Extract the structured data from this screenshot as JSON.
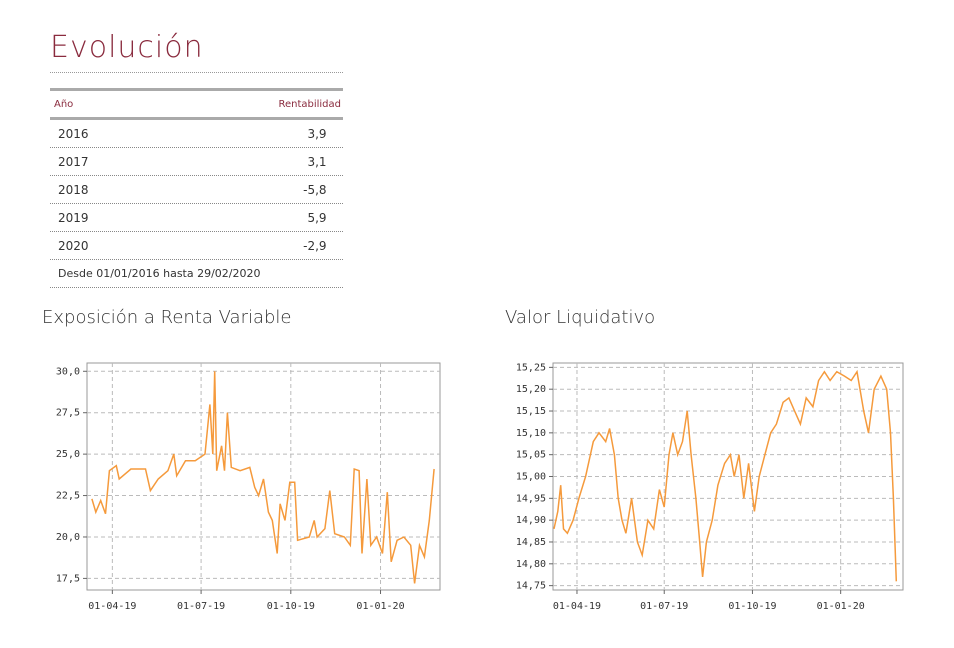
{
  "header": {
    "title": "Evolución"
  },
  "table": {
    "columns": [
      "Año",
      "Rentabilidad"
    ],
    "rows": [
      [
        "2016",
        "3,9"
      ],
      [
        "2017",
        "3,1"
      ],
      [
        "2018",
        "-5,8"
      ],
      [
        "2019",
        "5,9"
      ],
      [
        "2020",
        "-2,9"
      ]
    ],
    "footer": "Desde 01/01/2016 hasta 29/02/2020"
  },
  "chart_data": [
    {
      "type": "line",
      "title": "Exposición a Renta Variable",
      "x": [
        "2019-03-11",
        "2019-03-15",
        "2019-03-20",
        "2019-03-25",
        "2019-03-29",
        "2019-04-05",
        "2019-04-08",
        "2019-04-20",
        "2019-05-05",
        "2019-05-10",
        "2019-05-18",
        "2019-05-28",
        "2019-06-03",
        "2019-06-06",
        "2019-06-15",
        "2019-06-25",
        "2019-07-05",
        "2019-07-10",
        "2019-07-13",
        "2019-07-15",
        "2019-07-17",
        "2019-07-22",
        "2019-07-25",
        "2019-07-28",
        "2019-08-01",
        "2019-08-10",
        "2019-08-20",
        "2019-08-25",
        "2019-08-29",
        "2019-09-03",
        "2019-09-08",
        "2019-09-12",
        "2019-09-17",
        "2019-09-20",
        "2019-09-25",
        "2019-09-30",
        "2019-10-05",
        "2019-10-08",
        "2019-10-20",
        "2019-10-25",
        "2019-10-28",
        "2019-11-05",
        "2019-11-10",
        "2019-11-15",
        "2019-11-25",
        "2019-12-01",
        "2019-12-05",
        "2019-12-10",
        "2019-12-13",
        "2019-12-18",
        "2019-12-22",
        "2019-12-28",
        "2020-01-03",
        "2020-01-08",
        "2020-01-12",
        "2020-01-18",
        "2020-01-25",
        "2020-02-01",
        "2020-02-05",
        "2020-02-10",
        "2020-02-15",
        "2020-02-20",
        "2020-02-25"
      ],
      "series": [
        {
          "color": "#f59a3c",
          "values": [
            22.3,
            21.5,
            22.2,
            21.4,
            24.0,
            24.3,
            23.5,
            24.1,
            24.1,
            22.8,
            23.5,
            24.0,
            25.0,
            23.7,
            24.6,
            24.6,
            25.0,
            28.0,
            25.0,
            30.0,
            24.0,
            25.5,
            24.0,
            27.5,
            24.2,
            24.0,
            24.2,
            23.0,
            22.5,
            23.5,
            21.5,
            21.0,
            19.0,
            22.0,
            21.0,
            23.3,
            23.3,
            19.8,
            20.0,
            21.0,
            20.0,
            20.5,
            22.8,
            20.2,
            20.0,
            19.5,
            24.1,
            24.0,
            19.0,
            23.5,
            19.5,
            20.0,
            19.0,
            22.7,
            18.5,
            19.8,
            20.0,
            19.5,
            17.2,
            19.5,
            18.8,
            21.0,
            24.1
          ]
        }
      ],
      "xlim": [
        "2019-03-06",
        "2020-03-02"
      ],
      "xticks": [
        {
          "value": "2019-04-01",
          "label": "01-04-19"
        },
        {
          "value": "2019-07-01",
          "label": "01-07-19"
        },
        {
          "value": "2019-10-01",
          "label": "01-10-19"
        },
        {
          "value": "2020-01-01",
          "label": "01-01-20"
        }
      ],
      "ylim": [
        16.8,
        30.5
      ],
      "yticks": [
        {
          "value": 17.5,
          "label": "17,5"
        },
        {
          "value": 20,
          "label": "20,0"
        },
        {
          "value": 22.5,
          "label": "22,5"
        },
        {
          "value": 25,
          "label": "25,0"
        },
        {
          "value": 27.5,
          "label": "27,5"
        },
        {
          "value": 30,
          "label": "30,0"
        }
      ],
      "grid": true
    },
    {
      "type": "line",
      "title": "Valor Liquidativo",
      "x": [
        "2019-03-08",
        "2019-03-12",
        "2019-03-15",
        "2019-03-18",
        "2019-03-22",
        "2019-03-28",
        "2019-04-03",
        "2019-04-10",
        "2019-04-18",
        "2019-04-24",
        "2019-05-01",
        "2019-05-05",
        "2019-05-10",
        "2019-05-14",
        "2019-05-18",
        "2019-05-22",
        "2019-05-28",
        "2019-06-03",
        "2019-06-08",
        "2019-06-14",
        "2019-06-20",
        "2019-06-26",
        "2019-07-01",
        "2019-07-06",
        "2019-07-10",
        "2019-07-15",
        "2019-07-20",
        "2019-07-25",
        "2019-07-29",
        "2019-08-03",
        "2019-08-07",
        "2019-08-10",
        "2019-08-14",
        "2019-08-20",
        "2019-08-26",
        "2019-09-02",
        "2019-09-08",
        "2019-09-12",
        "2019-09-17",
        "2019-09-22",
        "2019-09-27",
        "2019-10-03",
        "2019-10-08",
        "2019-10-14",
        "2019-10-20",
        "2019-10-26",
        "2019-11-02",
        "2019-11-08",
        "2019-11-14",
        "2019-11-20",
        "2019-11-26",
        "2019-12-03",
        "2019-12-09",
        "2019-12-15",
        "2019-12-21",
        "2019-12-28",
        "2020-01-05",
        "2020-01-12",
        "2020-01-18",
        "2020-01-25",
        "2020-01-30",
        "2020-02-05",
        "2020-02-12",
        "2020-02-18",
        "2020-02-22",
        "2020-02-25",
        "2020-02-28"
      ],
      "series": [
        {
          "color": "#f59a3c",
          "values": [
            14.88,
            14.92,
            14.98,
            14.88,
            14.87,
            14.9,
            14.95,
            15.0,
            15.08,
            15.1,
            15.08,
            15.11,
            15.05,
            14.95,
            14.9,
            14.87,
            14.95,
            14.85,
            14.82,
            14.9,
            14.88,
            14.97,
            14.93,
            15.05,
            15.1,
            15.05,
            15.08,
            15.15,
            15.05,
            14.95,
            14.85,
            14.77,
            14.85,
            14.9,
            14.98,
            15.03,
            15.05,
            15.0,
            15.05,
            14.95,
            15.03,
            14.92,
            15.0,
            15.05,
            15.1,
            15.12,
            15.17,
            15.18,
            15.15,
            15.12,
            15.18,
            15.16,
            15.22,
            15.24,
            15.22,
            15.24,
            15.23,
            15.22,
            15.24,
            15.15,
            15.1,
            15.2,
            15.23,
            15.2,
            15.1,
            14.95,
            14.76
          ]
        }
      ],
      "xlim": [
        "2019-03-07",
        "2020-03-06"
      ],
      "xticks": [
        {
          "value": "2019-04-01",
          "label": "01-04-19"
        },
        {
          "value": "2019-07-01",
          "label": "01-07-19"
        },
        {
          "value": "2019-10-01",
          "label": "01-10-19"
        },
        {
          "value": "2020-01-01",
          "label": "01-01-20"
        }
      ],
      "ylim": [
        14.74,
        15.26
      ],
      "yticks": [
        {
          "value": 14.75,
          "label": "14,75"
        },
        {
          "value": 14.8,
          "label": "14,80"
        },
        {
          "value": 14.85,
          "label": "14,85"
        },
        {
          "value": 14.9,
          "label": "14,90"
        },
        {
          "value": 14.95,
          "label": "14,95"
        },
        {
          "value": 15,
          "label": "15,00"
        },
        {
          "value": 15.05,
          "label": "15,05"
        },
        {
          "value": 15.1,
          "label": "15,10"
        },
        {
          "value": 15.15,
          "label": "15,15"
        },
        {
          "value": 15.2,
          "label": "15,20"
        },
        {
          "value": 15.25,
          "label": "15,25"
        }
      ],
      "grid": true
    }
  ]
}
